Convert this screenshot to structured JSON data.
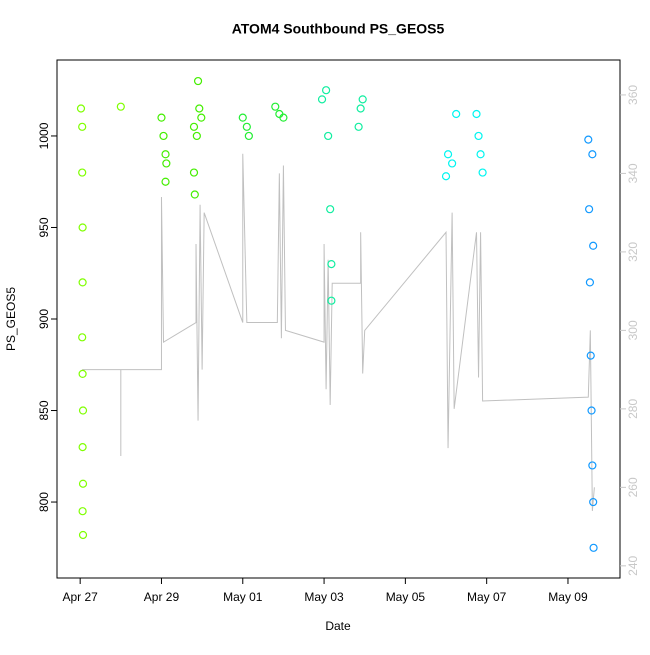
{
  "chart_data": {
    "type": "scatter",
    "title": "ATOM4 Southbound PS_GEOS5",
    "x_label": "Date",
    "y_label": "PS_GEOS5",
    "xlim": [
      -0.57,
      13.28
    ],
    "xticks": [
      {
        "value": 0,
        "label": "Apr 27"
      },
      {
        "value": 2,
        "label": "Apr 29"
      },
      {
        "value": 4,
        "label": "May 01"
      },
      {
        "value": 6,
        "label": "May 03"
      },
      {
        "value": 8,
        "label": "May 05"
      },
      {
        "value": 10,
        "label": "May 07"
      },
      {
        "value": 12,
        "label": "May 09"
      }
    ],
    "ylim": [
      758.5,
      1041.5
    ],
    "yticks": [
      800,
      850,
      900,
      950,
      1000
    ],
    "y2lim": [
      236.9,
      368.9
    ],
    "y2ticks": [
      240,
      260,
      280,
      300,
      320,
      340,
      360
    ],
    "y2_color": "#c8c8c8",
    "series": [
      {
        "type": "line",
        "axis": "y2",
        "color": "#c0c0c0",
        "x": [
          0.05,
          1.0,
          1.0,
          1.0,
          2.0,
          2.0,
          2.05,
          2.85,
          2.85,
          2.9,
          2.95,
          3.0,
          3.05,
          4.0,
          4.0,
          4.1,
          4.85,
          4.9,
          4.95,
          5.0,
          5.05,
          6.0,
          6.0,
          6.05,
          6.1,
          6.15,
          6.2,
          6.9,
          6.9,
          6.95,
          7.0,
          9.0,
          9.05,
          9.15,
          9.2,
          9.75,
          9.8,
          9.85,
          9.9,
          12.5,
          12.55,
          12.6,
          12.65
        ],
        "values": [
          290,
          290,
          268,
          290,
          290,
          334,
          297,
          302,
          322,
          277,
          332,
          290,
          330,
          302,
          345,
          302,
          302,
          340,
          298,
          342,
          300,
          297,
          322,
          285,
          318,
          281,
          312,
          312,
          325,
          289,
          300,
          325,
          270,
          330,
          280,
          325,
          288,
          325,
          282,
          283,
          300,
          254,
          260
        ]
      },
      {
        "color": "#7fff00",
        "x": [
          0.02,
          0.05,
          0.05,
          0.06,
          0.06,
          0.05,
          0.06,
          0.07,
          0.06,
          0.07,
          0.06,
          0.07,
          1.0
        ],
        "values": [
          1015,
          1005,
          980,
          950,
          920,
          890,
          870,
          850,
          830,
          810,
          795,
          782,
          1016
        ]
      },
      {
        "color": "#44ee00",
        "x": [
          2.0,
          2.05,
          2.1,
          2.1,
          2.12,
          2.8,
          2.8,
          2.82,
          2.87,
          2.9,
          2.93,
          2.98
        ],
        "values": [
          1010,
          1000,
          990,
          975,
          985,
          1005,
          980,
          968,
          1000,
          1030,
          1015,
          1010
        ]
      },
      {
        "color": "#22ee33",
        "x": [
          4.0,
          4.1,
          4.15,
          4.8,
          4.9,
          5.0
        ],
        "values": [
          1010,
          1005,
          1000,
          1016,
          1012,
          1010
        ]
      },
      {
        "color": "#11eea0",
        "x": [
          5.95,
          6.05,
          6.1,
          6.15,
          6.18,
          6.18,
          6.85,
          6.9,
          6.95
        ],
        "values": [
          1020,
          1025,
          1000,
          960,
          930,
          910,
          1005,
          1015,
          1020
        ]
      },
      {
        "color": "#00f5f0",
        "x": [
          9.0,
          9.05,
          9.15,
          9.25,
          9.75,
          9.8,
          9.85,
          9.9
        ],
        "values": [
          978,
          990,
          985,
          1012,
          1012,
          1000,
          990,
          980
        ]
      },
      {
        "color": "#1199ff",
        "x": [
          12.5,
          12.52,
          12.54,
          12.56,
          12.58,
          12.6,
          12.62,
          12.63,
          12.6,
          12.62
        ],
        "values": [
          998,
          960,
          920,
          880,
          850,
          820,
          800,
          775,
          990,
          940
        ]
      }
    ]
  }
}
